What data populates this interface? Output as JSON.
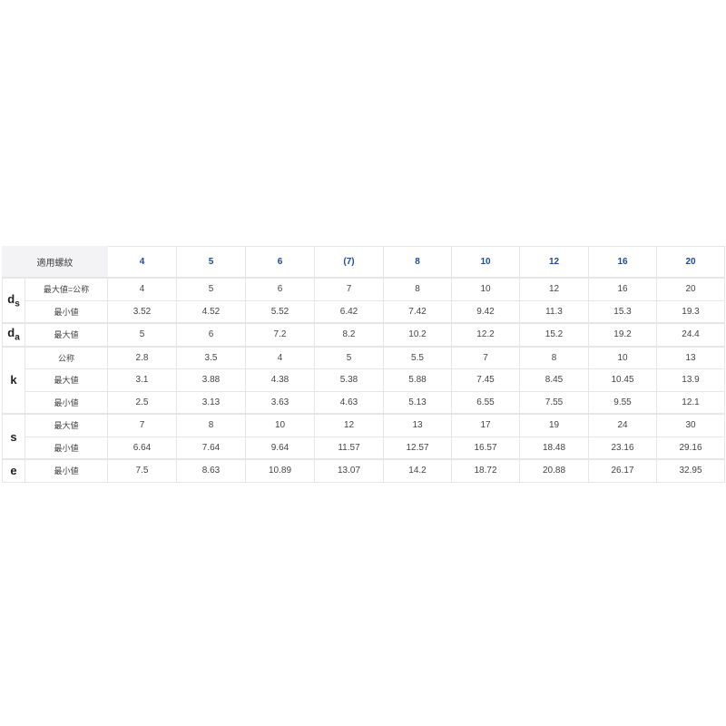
{
  "table": {
    "header_label": "適用螺紋",
    "columns": [
      "4",
      "5",
      "6",
      "(7)",
      "8",
      "10",
      "12",
      "16",
      "20"
    ],
    "groups": [
      {
        "symbol": "d",
        "sub": "s",
        "rows": [
          {
            "label": "最大値=公称",
            "values": [
              "4",
              "5",
              "6",
              "7",
              "8",
              "10",
              "12",
              "16",
              "20"
            ]
          },
          {
            "label": "最小値",
            "values": [
              "3.52",
              "4.52",
              "5.52",
              "6.42",
              "7.42",
              "9.42",
              "11.3",
              "15.3",
              "19.3"
            ]
          }
        ]
      },
      {
        "symbol": "d",
        "sub": "a",
        "rows": [
          {
            "label": "最大値",
            "values": [
              "5",
              "6",
              "7.2",
              "8.2",
              "10.2",
              "12.2",
              "15.2",
              "19.2",
              "24.4"
            ]
          }
        ]
      },
      {
        "symbol": "k",
        "sub": "",
        "rows": [
          {
            "label": "公称",
            "values": [
              "2.8",
              "3.5",
              "4",
              "5",
              "5.5",
              "7",
              "8",
              "10",
              "13"
            ]
          },
          {
            "label": "最大値",
            "values": [
              "3.1",
              "3.88",
              "4.38",
              "5.38",
              "5.88",
              "7.45",
              "8.45",
              "10.45",
              "13.9"
            ]
          },
          {
            "label": "最小値",
            "values": [
              "2.5",
              "3.13",
              "3.63",
              "4.63",
              "5.13",
              "6.55",
              "7.55",
              "9.55",
              "12.1"
            ]
          }
        ]
      },
      {
        "symbol": "s",
        "sub": "",
        "rows": [
          {
            "label": "最大値",
            "values": [
              "7",
              "8",
              "10",
              "12",
              "13",
              "17",
              "19",
              "24",
              "30"
            ]
          },
          {
            "label": "最小値",
            "values": [
              "6.64",
              "7.64",
              "9.64",
              "11.57",
              "12.57",
              "16.57",
              "18.48",
              "23.16",
              "29.16"
            ]
          }
        ]
      },
      {
        "symbol": "e",
        "sub": "",
        "rows": [
          {
            "label": "最小値",
            "values": [
              "7.5",
              "8.63",
              "10.89",
              "13.07",
              "14.2",
              "18.72",
              "20.88",
              "26.17",
              "32.95"
            ]
          }
        ]
      }
    ]
  }
}
